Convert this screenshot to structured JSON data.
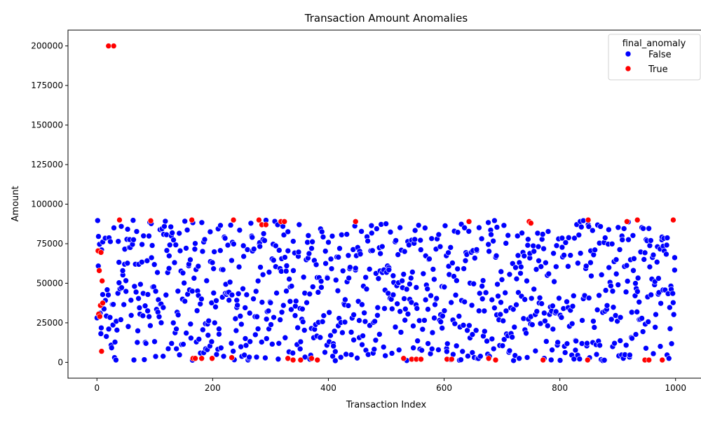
{
  "chart_data": {
    "type": "scatter",
    "title": "Transaction Amount Anomalies",
    "xlabel": "Transaction Index",
    "ylabel": "Amount",
    "xlim": [
      -50,
      1050
    ],
    "ylim": [
      -10000,
      210000
    ],
    "xticks": [
      0,
      200,
      400,
      600,
      800,
      1000
    ],
    "yticks": [
      0,
      25000,
      50000,
      75000,
      100000,
      125000,
      150000,
      175000,
      200000
    ],
    "grid": false,
    "legend": {
      "title": "final_anomaly",
      "position": "top-right",
      "entries": [
        {
          "label": "False",
          "color": "#0000ff"
        },
        {
          "label": "True",
          "color": "#ff0000"
        }
      ]
    },
    "series": [
      {
        "name": "False",
        "color": "#0000ff",
        "description": "approx. 950 normal transactions spread uniformly between indices 0-999 with amounts roughly 1,000-90,000",
        "n_points": 950,
        "x_range": [
          0,
          999
        ],
        "y_range": [
          1000,
          90000
        ]
      },
      {
        "name": "True",
        "color": "#ff0000",
        "points": [
          [
            2,
            70500
          ],
          [
            3,
            30500
          ],
          [
            4,
            58000
          ],
          [
            5,
            29000
          ],
          [
            6,
            36000
          ],
          [
            7,
            69500
          ],
          [
            8,
            7000
          ],
          [
            9,
            51500
          ],
          [
            10,
            37500
          ],
          [
            20,
            200000
          ],
          [
            29,
            200000
          ],
          [
            39,
            90000
          ],
          [
            93,
            89500
          ],
          [
            164,
            90000
          ],
          [
            166,
            2500
          ],
          [
            170,
            2500
          ],
          [
            181,
            2500
          ],
          [
            199,
            2500
          ],
          [
            233,
            3000
          ],
          [
            236,
            90000
          ],
          [
            280,
            90000
          ],
          [
            285,
            87000
          ],
          [
            292,
            87000
          ],
          [
            318,
            89000
          ],
          [
            324,
            89000
          ],
          [
            330,
            2500
          ],
          [
            339,
            1500
          ],
          [
            352,
            1500
          ],
          [
            371,
            2500
          ],
          [
            381,
            1500
          ],
          [
            447,
            89000
          ],
          [
            530,
            2500
          ],
          [
            544,
            2000
          ],
          [
            552,
            2000
          ],
          [
            560,
            2000
          ],
          [
            605,
            2000
          ],
          [
            613,
            2000
          ],
          [
            643,
            89000
          ],
          [
            677,
            2500
          ],
          [
            689,
            1500
          ],
          [
            747,
            89000
          ],
          [
            750,
            88000
          ],
          [
            771,
            1500
          ],
          [
            848,
            1500
          ],
          [
            849,
            90000
          ],
          [
            916,
            89000
          ],
          [
            934,
            90000
          ],
          [
            947,
            1500
          ],
          [
            954,
            1500
          ],
          [
            977,
            1500
          ],
          [
            996,
            90000
          ]
        ]
      }
    ]
  }
}
